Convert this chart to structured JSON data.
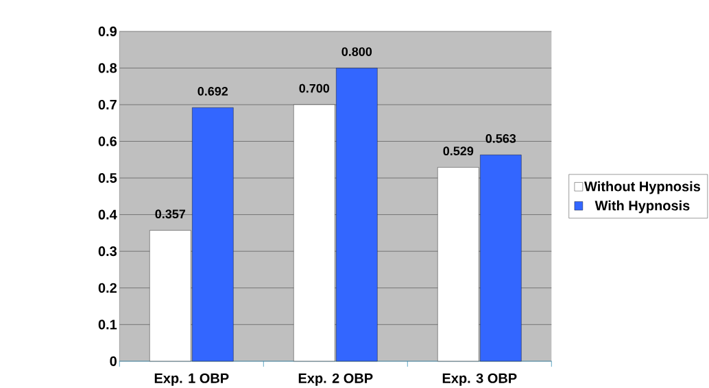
{
  "chart_data": {
    "type": "bar",
    "categories": [
      "Exp. 1 OBP",
      "Exp. 2 OBP",
      "Exp. 3 OBP"
    ],
    "series": [
      {
        "name": "Without Hypnosis",
        "color": "#ffffff",
        "values": [
          0.357,
          0.7,
          0.529
        ],
        "value_labels": [
          "0.357",
          "0.700",
          "0.529"
        ]
      },
      {
        "name": "With Hypnosis",
        "color": "#3366ff",
        "values": [
          0.692,
          0.8,
          0.563
        ],
        "value_labels": [
          "0.692",
          "0.800",
          "0.563"
        ]
      }
    ],
    "ylim": [
      0,
      0.9
    ],
    "yticks": [
      0,
      0.1,
      0.2,
      0.3,
      0.4,
      0.5,
      0.6,
      0.7,
      0.8,
      0.9
    ],
    "grid": "y",
    "legend": "right"
  }
}
